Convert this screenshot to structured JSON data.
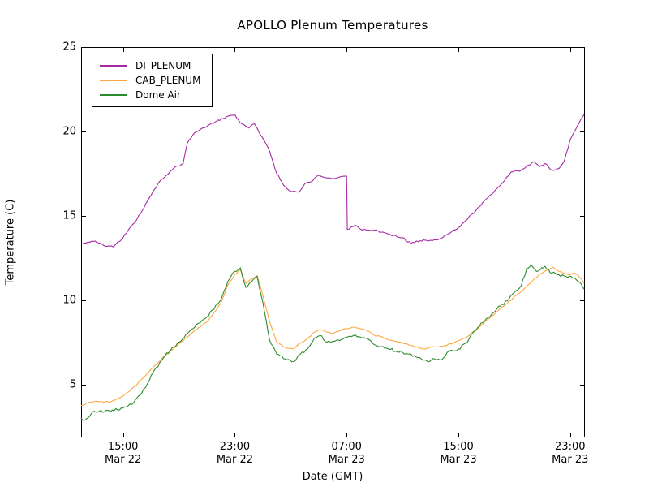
{
  "chart_data": {
    "type": "line",
    "title": "APOLLO Plenum Temperatures",
    "xlabel": "Date (GMT)",
    "ylabel": "Temperature (C)",
    "x_unit": "hours_since_Mar22_12:00_GMT",
    "xlim": [
      0,
      36
    ],
    "ylim": [
      1.9,
      25
    ],
    "grid": false,
    "legend_position": "upper left",
    "y_ticks": [
      "5",
      "10",
      "15",
      "20",
      "25"
    ],
    "y_tick_values": [
      5,
      10,
      15,
      20,
      25
    ],
    "x_ticks": [
      {
        "h": 3,
        "time": "15:00",
        "date": "Mar 22"
      },
      {
        "h": 11,
        "time": "23:00",
        "date": "Mar 22"
      },
      {
        "h": 19,
        "time": "07:00",
        "date": "Mar 23"
      },
      {
        "h": 27,
        "time": "15:00",
        "date": "Mar 23"
      },
      {
        "h": 35,
        "time": "23:00",
        "date": "Mar 23"
      }
    ],
    "series": [
      {
        "name": "DI_PLENUM",
        "color": "#a62aa6",
        "jitter": 0.05,
        "points": [
          [
            0,
            13.3
          ],
          [
            0.5,
            13.45
          ],
          [
            1,
            13.5
          ],
          [
            1.7,
            13.2
          ],
          [
            2.3,
            13.15
          ],
          [
            3,
            13.7
          ],
          [
            4,
            14.8
          ],
          [
            5,
            16.2
          ],
          [
            5.5,
            16.9
          ],
          [
            6,
            17.3
          ],
          [
            6.6,
            17.8
          ],
          [
            7.3,
            18.1
          ],
          [
            7.6,
            19.3
          ],
          [
            8,
            19.8
          ],
          [
            8.7,
            20.2
          ],
          [
            9.7,
            20.6
          ],
          [
            10.5,
            20.9
          ],
          [
            11,
            21.0
          ],
          [
            11.4,
            20.5
          ],
          [
            12,
            20.2
          ],
          [
            12.4,
            20.45
          ],
          [
            13,
            19.6
          ],
          [
            13.5,
            18.8
          ],
          [
            14,
            17.5
          ],
          [
            14.5,
            16.8
          ],
          [
            15,
            16.45
          ],
          [
            15.6,
            16.4
          ],
          [
            16,
            16.9
          ],
          [
            16.6,
            17.1
          ],
          [
            17,
            17.4
          ],
          [
            17.5,
            17.25
          ],
          [
            18,
            17.2
          ],
          [
            18.5,
            17.3
          ],
          [
            19,
            17.35
          ],
          [
            19.05,
            14.2
          ],
          [
            19.6,
            14.45
          ],
          [
            20,
            14.2
          ],
          [
            21,
            14.15
          ],
          [
            22,
            13.9
          ],
          [
            23,
            13.7
          ],
          [
            23.6,
            13.35
          ],
          [
            24,
            13.5
          ],
          [
            25,
            13.55
          ],
          [
            25.6,
            13.6
          ],
          [
            26,
            13.8
          ],
          [
            27,
            14.3
          ],
          [
            28,
            15.1
          ],
          [
            29,
            16.0
          ],
          [
            30,
            16.8
          ],
          [
            30.8,
            17.6
          ],
          [
            31.5,
            17.7
          ],
          [
            32,
            18.0
          ],
          [
            32.4,
            18.2
          ],
          [
            32.8,
            17.9
          ],
          [
            33.2,
            18.1
          ],
          [
            33.7,
            17.7
          ],
          [
            34.2,
            17.8
          ],
          [
            34.6,
            18.3
          ],
          [
            35,
            19.5
          ],
          [
            35.5,
            20.3
          ],
          [
            36,
            21.0
          ]
        ]
      },
      {
        "name": "CAB_PLENUM",
        "color": "#ffa843",
        "jitter": 0.03,
        "points": [
          [
            0,
            3.75
          ],
          [
            0.5,
            3.9
          ],
          [
            1,
            4.0
          ],
          [
            1.6,
            3.95
          ],
          [
            2.2,
            4.0
          ],
          [
            3,
            4.3
          ],
          [
            4,
            5.0
          ],
          [
            5,
            5.9
          ],
          [
            6,
            6.7
          ],
          [
            7,
            7.4
          ],
          [
            8,
            8.1
          ],
          [
            9,
            8.7
          ],
          [
            10,
            9.8
          ],
          [
            10.5,
            10.9
          ],
          [
            11,
            11.5
          ],
          [
            11.4,
            11.8
          ],
          [
            11.8,
            11.0
          ],
          [
            12.3,
            11.3
          ],
          [
            12.6,
            11.45
          ],
          [
            13,
            10.3
          ],
          [
            13.5,
            8.7
          ],
          [
            14,
            7.5
          ],
          [
            14.6,
            7.2
          ],
          [
            15.2,
            7.1
          ],
          [
            15.7,
            7.45
          ],
          [
            16.2,
            7.7
          ],
          [
            16.7,
            8.1
          ],
          [
            17.1,
            8.25
          ],
          [
            17.6,
            8.1
          ],
          [
            18,
            8.0
          ],
          [
            18.5,
            8.2
          ],
          [
            19,
            8.3
          ],
          [
            19.5,
            8.4
          ],
          [
            20,
            8.3
          ],
          [
            20.6,
            8.15
          ],
          [
            21,
            7.9
          ],
          [
            21.6,
            7.8
          ],
          [
            22,
            7.65
          ],
          [
            23,
            7.45
          ],
          [
            23.7,
            7.3
          ],
          [
            24.5,
            7.1
          ],
          [
            25,
            7.2
          ],
          [
            26,
            7.3
          ],
          [
            26.5,
            7.4
          ],
          [
            27,
            7.6
          ],
          [
            27.6,
            7.8
          ],
          [
            28,
            8.1
          ],
          [
            28.5,
            8.4
          ],
          [
            29,
            8.8
          ],
          [
            29.5,
            9.1
          ],
          [
            30,
            9.5
          ],
          [
            30.5,
            9.8
          ],
          [
            31,
            10.2
          ],
          [
            31.5,
            10.5
          ],
          [
            32,
            10.9
          ],
          [
            32.5,
            11.3
          ],
          [
            33,
            11.6
          ],
          [
            33.4,
            11.8
          ],
          [
            33.8,
            11.95
          ],
          [
            34.2,
            11.7
          ],
          [
            34.6,
            11.6
          ],
          [
            35,
            11.5
          ],
          [
            35.3,
            11.6
          ],
          [
            35.6,
            11.45
          ],
          [
            36,
            11.0
          ]
        ]
      },
      {
        "name": "Dome Air",
        "color": "#2e8b2e",
        "jitter": 0.08,
        "points": [
          [
            0,
            3.0
          ],
          [
            0.3,
            2.9
          ],
          [
            0.8,
            3.35
          ],
          [
            1.3,
            3.4
          ],
          [
            2,
            3.45
          ],
          [
            2.6,
            3.5
          ],
          [
            3,
            3.6
          ],
          [
            3.6,
            3.8
          ],
          [
            4,
            4.2
          ],
          [
            4.6,
            4.8
          ],
          [
            5,
            5.5
          ],
          [
            6,
            6.7
          ],
          [
            7,
            7.5
          ],
          [
            8,
            8.3
          ],
          [
            9,
            9.0
          ],
          [
            10,
            10.0
          ],
          [
            10.5,
            11.1
          ],
          [
            11,
            11.7
          ],
          [
            11.4,
            11.9
          ],
          [
            11.8,
            10.75
          ],
          [
            12.3,
            11.2
          ],
          [
            12.6,
            11.4
          ],
          [
            13,
            9.9
          ],
          [
            13.5,
            7.6
          ],
          [
            14,
            6.8
          ],
          [
            14.6,
            6.5
          ],
          [
            15.2,
            6.35
          ],
          [
            15.7,
            6.8
          ],
          [
            16.2,
            7.1
          ],
          [
            16.7,
            7.75
          ],
          [
            17.1,
            7.9
          ],
          [
            17.6,
            7.5
          ],
          [
            18,
            7.55
          ],
          [
            18.5,
            7.6
          ],
          [
            19,
            7.8
          ],
          [
            19.5,
            7.9
          ],
          [
            20,
            7.8
          ],
          [
            20.6,
            7.65
          ],
          [
            21,
            7.35
          ],
          [
            21.6,
            7.25
          ],
          [
            22,
            7.1
          ],
          [
            23,
            6.9
          ],
          [
            23.5,
            6.8
          ],
          [
            24.3,
            6.55
          ],
          [
            24.8,
            6.35
          ],
          [
            25.3,
            6.5
          ],
          [
            25.8,
            6.45
          ],
          [
            26.2,
            6.9
          ],
          [
            26.6,
            7.0
          ],
          [
            27,
            7.1
          ],
          [
            27.6,
            7.45
          ],
          [
            28,
            8.0
          ],
          [
            28.5,
            8.45
          ],
          [
            29,
            8.9
          ],
          [
            29.5,
            9.25
          ],
          [
            30,
            9.65
          ],
          [
            30.5,
            9.95
          ],
          [
            31,
            10.45
          ],
          [
            31.5,
            10.85
          ],
          [
            31.9,
            11.9
          ],
          [
            32.2,
            12.1
          ],
          [
            32.6,
            11.7
          ],
          [
            33.2,
            12.0
          ],
          [
            33.7,
            11.6
          ],
          [
            34.2,
            11.5
          ],
          [
            34.7,
            11.4
          ],
          [
            35.2,
            11.3
          ],
          [
            35.6,
            11.1
          ],
          [
            36,
            10.65
          ]
        ]
      }
    ]
  }
}
